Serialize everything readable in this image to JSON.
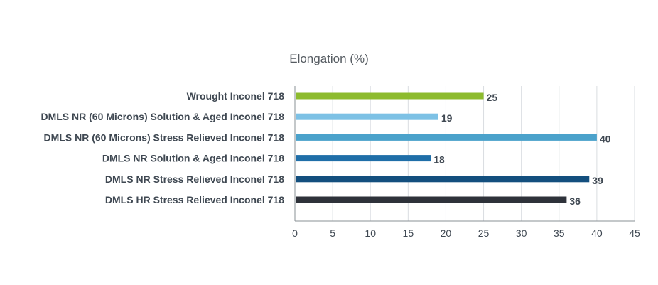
{
  "chart_data": {
    "type": "bar",
    "orientation": "horizontal",
    "title": "Elongation (%)",
    "xlabel": "",
    "ylabel": "",
    "categories": [
      "Wrought Inconel 718",
      "DMLS NR (60 Microns) Solution & Aged Inconel 718",
      "DMLS NR (60 Microns) Stress Relieved Inconel 718",
      "DMLS NR Solution & Aged Inconel 718",
      "DMLS NR Stress Relieved Inconel 718",
      "DMLS HR Stress Relieved Inconel 718"
    ],
    "values": [
      25,
      19,
      40,
      18,
      39,
      36
    ],
    "data_labels": [
      "25",
      "19",
      "40",
      "18",
      "39",
      "36"
    ],
    "bar_colors": [
      "#8dbb2e",
      "#7dc1e5",
      "#4ba2cb",
      "#1f6ea8",
      "#134f7e",
      "#2e323a"
    ],
    "xlim": [
      0,
      45
    ],
    "x_ticks": [
      "0",
      "5",
      "10",
      "15",
      "20",
      "25",
      "30",
      "35",
      "40",
      "45"
    ],
    "grid": true,
    "legend": "none"
  }
}
